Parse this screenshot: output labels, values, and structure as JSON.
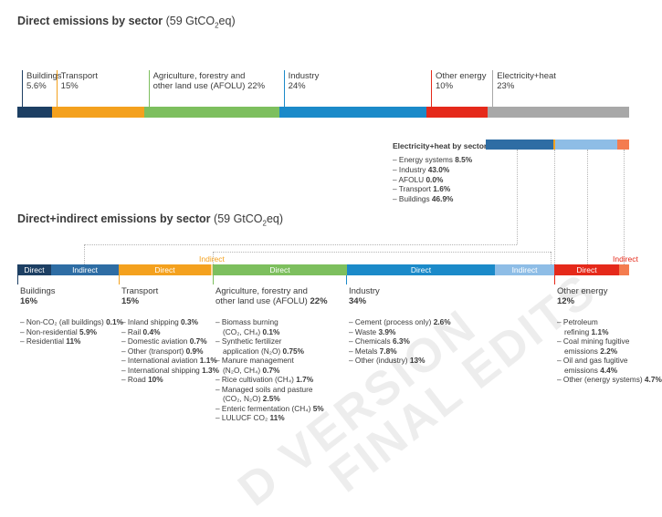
{
  "top_chart": {
    "title": "Direct emissions by sector",
    "subtitle": "(59 GtCO",
    "subtitle_sub": "2",
    "subtitle_end": "eq)"
  },
  "sector_labels": [
    {
      "name": "Buildings",
      "value": "5.6%"
    },
    {
      "name": "Transport",
      "value": "15%"
    },
    {
      "name": "Agriculture, forestry and",
      "name2": "other land use (AFOLU)",
      "value": "22%"
    },
    {
      "name": "Industry",
      "value": "24%"
    },
    {
      "name": "Other energy",
      "value": "10%"
    },
    {
      "name": "Electricity+heat",
      "value": "23%"
    }
  ],
  "elec_breakdown": {
    "title": "Electricity+heat by sector",
    "items": [
      {
        "label": "Energy systems",
        "value": "8.5%"
      },
      {
        "label": "Industry",
        "value": "43.0%"
      },
      {
        "label": "AFOLU",
        "value": "0.0%"
      },
      {
        "label": "Transport",
        "value": "1.6%"
      },
      {
        "label": "Buildings",
        "value": "46.9%"
      }
    ]
  },
  "bottom_chart": {
    "title": "Direct+indirect emissions by sector",
    "subtitle": "(59 GtCO",
    "subtitle_sub": "2",
    "subtitle_end": "eq)"
  },
  "bar_labels": {
    "direct": "Direct",
    "indirect": "Indirect"
  },
  "sectors_bottom": [
    {
      "name": "Buildings",
      "value": "16%",
      "items": [
        {
          "label": "Non-CO₂ (all buildings)",
          "value": "0.1%"
        },
        {
          "label": "Non-residential",
          "value": "5.9%"
        },
        {
          "label": "Residential",
          "value": "11%"
        }
      ]
    },
    {
      "name": "Transport",
      "value": "15%",
      "items": [
        {
          "label": "Inland shipping",
          "value": "0.3%"
        },
        {
          "label": "Rail",
          "value": "0.4%"
        },
        {
          "label": "Domestic aviation",
          "value": "0.7%"
        },
        {
          "label": "Other (transport)",
          "value": "0.9%"
        },
        {
          "label": "International aviation",
          "value": "1.1%"
        },
        {
          "label": "International shipping",
          "value": "1.3%"
        },
        {
          "label": "Road",
          "value": "10%"
        }
      ]
    },
    {
      "name": "Agriculture, forestry and",
      "name2": "other land use (AFOLU)",
      "value": "22%",
      "items": [
        {
          "label": "Biomass burning",
          "label2": "(CO₂, CH₄)",
          "value": "0.1%"
        },
        {
          "label": "Synthetic fertilizer",
          "label2": "application (N₂O)",
          "value": "0.75%"
        },
        {
          "label": "Manure management",
          "label2": "(N₂O, CH₄)",
          "value": "0.7%"
        },
        {
          "label": "Rice cultivation (CH₄)",
          "value": "1.7%"
        },
        {
          "label": "Managed soils and pasture",
          "label2": "(CO₂, N₂O)",
          "value": "2.5%"
        },
        {
          "label": "Enteric fermentation (CH₄)",
          "value": "5%"
        },
        {
          "label": "LULUCF CO₂",
          "value": "11%"
        }
      ]
    },
    {
      "name": "Industry",
      "value": "34%",
      "items": [
        {
          "label": "Cement (process only)",
          "value": "2.6%"
        },
        {
          "label": "Waste",
          "value": "3.9%"
        },
        {
          "label": "Chemicals",
          "value": "6.3%"
        },
        {
          "label": "Metals",
          "value": "7.8%"
        },
        {
          "label": "Other (industry)",
          "value": "13%"
        }
      ]
    },
    {
      "name": "Other energy",
      "value": "12%",
      "items": [
        {
          "label": "Petroleum",
          "label2": "refining",
          "value": "1.1%"
        },
        {
          "label": "Coal mining fugitive",
          "label2": "emissions",
          "value": "2.2%"
        },
        {
          "label": "Oil and gas fugitive",
          "label2": "emissions",
          "value": "4.4%"
        },
        {
          "label": "Other (energy systems)",
          "value": "4.7%"
        }
      ]
    }
  ],
  "watermark": {
    "line1": "D VERSION",
    "line2": "FINAL EDITS"
  },
  "chart_data": [
    {
      "type": "bar",
      "orientation": "horizontal-stacked",
      "title": "Direct emissions by sector (59 GtCO2eq)",
      "categories": [
        "Buildings",
        "Transport",
        "AFOLU",
        "Industry",
        "Other energy",
        "Electricity+heat"
      ],
      "values": [
        5.6,
        15,
        22,
        24,
        10,
        23
      ],
      "colors": [
        "#1d3f63",
        "#f4a11e",
        "#7dbf5e",
        "#1b8ac9",
        "#e5291a",
        "#a8a8a8"
      ]
    },
    {
      "type": "bar",
      "orientation": "horizontal-stacked",
      "title": "Electricity+heat by sector",
      "categories": [
        "Energy systems",
        "Industry",
        "AFOLU",
        "Transport",
        "Buildings"
      ],
      "values": [
        8.5,
        43.0,
        0.0,
        1.6,
        46.9
      ],
      "colors": [
        "#f47c4f",
        "#8ebde6",
        "#7dbf5e",
        "#f4a11e",
        "#2e6da4"
      ]
    },
    {
      "type": "bar",
      "orientation": "horizontal-stacked",
      "title": "Direct+indirect emissions by sector (59 GtCO2eq)",
      "categories": [
        "Buildings",
        "Transport",
        "AFOLU",
        "Industry",
        "Other energy"
      ],
      "values": [
        16,
        15,
        22,
        34,
        12
      ]
    }
  ]
}
